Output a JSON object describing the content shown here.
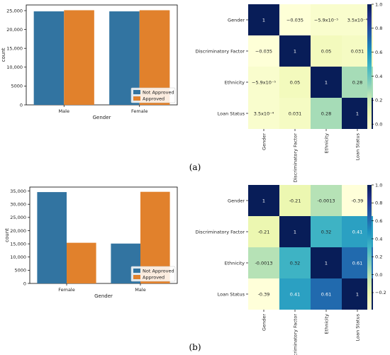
{
  "panel_labels": [
    "(a)",
    "(b)"
  ],
  "colors": {
    "not_approved": "#3274a1",
    "approved": "#e1812c",
    "cmap": [
      "#ffffd9",
      "#edf8b1",
      "#c7e9b4",
      "#7fcdbb",
      "#41b6c4",
      "#1d91c0",
      "#225ea8",
      "#253494",
      "#081d58"
    ]
  },
  "chart_data": [
    {
      "type": "bar",
      "panel": "(a)",
      "categories": [
        "Male",
        "Female"
      ],
      "series": [
        {
          "name": "Not Approved",
          "values": [
            24800,
            24800
          ]
        },
        {
          "name": "Approved",
          "values": [
            25100,
            25100
          ]
        }
      ],
      "xlabel": "Gender",
      "ylabel": "count",
      "ylim": [
        0,
        26500
      ],
      "yticks": [
        0,
        5000,
        10000,
        15000,
        20000,
        25000
      ],
      "ytick_labels": [
        "0",
        "5000",
        "10,000",
        "15,000",
        "20,000",
        "25,000"
      ],
      "legend_position": "lower-right"
    },
    {
      "type": "heatmap",
      "panel": "(a)",
      "rows": [
        "Gender",
        "Discriminatory Factor",
        "Ethnicity",
        "Loan Status"
      ],
      "cols": [
        "Gender",
        "Discriminatory Factor",
        "Ethnicity",
        "Loan Status"
      ],
      "values": [
        [
          1,
          -0.035,
          -5.9e-05,
          0.00035
        ],
        [
          -0.035,
          1,
          0.05,
          0.031
        ],
        [
          -5.9e-05,
          0.05,
          1,
          0.28
        ],
        [
          0.00035,
          0.031,
          0.28,
          1
        ]
      ],
      "labels": [
        [
          "1",
          "−0.035",
          "−5.9x10⁻⁵",
          "3.5x10⁻⁴"
        ],
        [
          "−0.035",
          "1",
          "0.05",
          "0.031"
        ],
        [
          "−5.9x10⁻⁵",
          "0.05",
          "1",
          "0.28"
        ],
        [
          "3.5x10⁻⁴",
          "0.031",
          "0.28",
          "1"
        ]
      ],
      "vmin": -0.04,
      "vmax": 1.0,
      "colorbar_ticks": [
        0.0,
        0.2,
        0.4,
        0.6,
        0.8,
        1.0
      ],
      "colorbar_tick_labels": [
        "0.0",
        "0.2",
        "0.4",
        "0.6",
        "0.8",
        "1.0"
      ]
    },
    {
      "type": "bar",
      "panel": "(b)",
      "categories": [
        "Female",
        "Male"
      ],
      "series": [
        {
          "name": "Not Approved",
          "values": [
            34600,
            15100
          ]
        },
        {
          "name": "Approved",
          "values": [
            15400,
            34700
          ]
        }
      ],
      "xlabel": "Gender",
      "ylabel": "count",
      "ylim": [
        0,
        36500
      ],
      "yticks": [
        0,
        5000,
        10000,
        15000,
        20000,
        25000,
        30000,
        35000
      ],
      "ytick_labels": [
        "0",
        "5000",
        "10,000",
        "15,000",
        "20,000",
        "25,000",
        "30,000",
        "35,000"
      ],
      "legend_position": "lower-right"
    },
    {
      "type": "heatmap",
      "panel": "(b)",
      "rows": [
        "Gender",
        "Discriminatory Factor",
        "Ethnicity",
        "Loan Status"
      ],
      "cols": [
        "Gender",
        "Discriminatory Factor",
        "Ethnicity",
        "Loan Status"
      ],
      "values": [
        [
          1,
          -0.21,
          -0.0013,
          -0.39
        ],
        [
          -0.21,
          1,
          0.32,
          0.41
        ],
        [
          -0.0013,
          0.32,
          1,
          0.61
        ],
        [
          -0.39,
          0.41,
          0.61,
          1
        ]
      ],
      "labels": [
        [
          "1",
          "-0.21",
          "-0.0013",
          "-0.39"
        ],
        [
          "-0.21",
          "1",
          "0.32",
          "0.41"
        ],
        [
          "-0.0013",
          "0.32",
          "1",
          "0.61"
        ],
        [
          "-0.39",
          "0.41",
          "0.61",
          "1"
        ]
      ],
      "vmin": -0.39,
      "vmax": 1.0,
      "colorbar_ticks": [
        -0.2,
        0.0,
        0.2,
        0.4,
        0.6,
        0.8,
        1.0
      ],
      "colorbar_tick_labels": [
        "−0.2",
        "0.0",
        "0.2",
        "0.4",
        "0.6",
        "0.8",
        "1.0"
      ]
    }
  ]
}
